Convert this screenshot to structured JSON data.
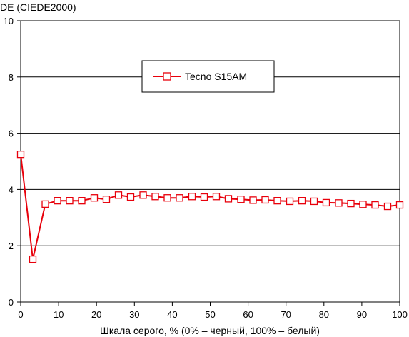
{
  "chart_data": {
    "type": "line",
    "ylabel": "DE (CIEDE2000)",
    "xlabel": "Шкала серого, % (0% – черный, 100% – белый)",
    "xlim": [
      0,
      100
    ],
    "ylim": [
      0,
      10
    ],
    "x_ticks": [
      0,
      10,
      20,
      30,
      40,
      50,
      60,
      70,
      80,
      90,
      100
    ],
    "y_ticks": [
      0,
      2,
      4,
      6,
      8,
      10
    ],
    "grid": "horizontal",
    "legend_position": "top-center",
    "series": [
      {
        "name": "Tecno S15AM",
        "color": "#e8000b",
        "marker": "open-square",
        "x": [
          0,
          3.2,
          6.5,
          9.7,
          12.9,
          16.1,
          19.4,
          22.6,
          25.8,
          29.0,
          32.3,
          35.5,
          38.7,
          41.9,
          45.2,
          48.4,
          51.6,
          54.8,
          58.1,
          61.3,
          64.5,
          67.7,
          71.0,
          74.2,
          77.4,
          80.6,
          83.9,
          87.1,
          90.3,
          93.5,
          96.8,
          100
        ],
        "y": [
          5.25,
          1.52,
          3.48,
          3.6,
          3.6,
          3.6,
          3.7,
          3.65,
          3.8,
          3.73,
          3.8,
          3.75,
          3.7,
          3.7,
          3.75,
          3.73,
          3.75,
          3.67,
          3.65,
          3.62,
          3.63,
          3.6,
          3.58,
          3.6,
          3.58,
          3.53,
          3.52,
          3.5,
          3.47,
          3.45,
          3.4,
          3.45
        ]
      }
    ]
  }
}
